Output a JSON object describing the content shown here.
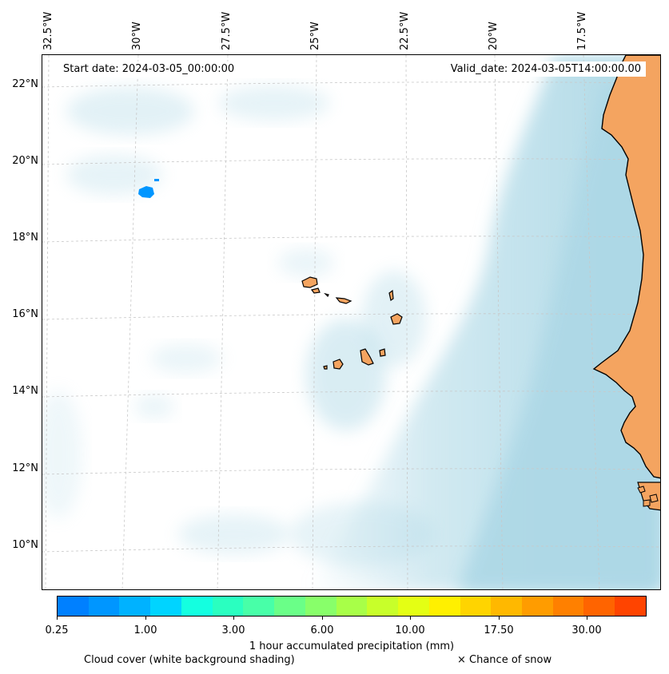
{
  "map": {
    "start_date": "Start date: 2024-03-05_00:00:00",
    "valid_date": "Valid_date: 2024-03-05T14:00:00.00",
    "lon_labels": [
      "32.5°W",
      "30°W",
      "27.5°W",
      "25°W",
      "22.5°W",
      "20°W",
      "17.5°W"
    ],
    "lat_labels": [
      "22°N",
      "20°N",
      "18°N",
      "16°N",
      "14°N",
      "12°N",
      "10°N"
    ],
    "colors": {
      "land": "#f4a460",
      "cloud": "#add8e6",
      "coast": "#000000",
      "grid": "#c8c8c8"
    }
  },
  "colorbar": {
    "label": "1 hour accumulated precipitation (mm)",
    "tick_labels": [
      "0.25",
      "1.00",
      "3.00",
      "6.00",
      "10.00",
      "17.50",
      "30.00"
    ],
    "colors": [
      "#0080ff",
      "#0096ff",
      "#00b2ff",
      "#00d4ff",
      "#14ffe0",
      "#2affc0",
      "#48ffa8",
      "#6aff88",
      "#88ff6a",
      "#a8ff48",
      "#c8ff2a",
      "#e4ff14",
      "#fff000",
      "#ffd400",
      "#ffb800",
      "#ff9c00",
      "#ff8000",
      "#ff6400",
      "#ff4400"
    ]
  },
  "legend": {
    "cloud_note": "Cloud cover (white background shading)",
    "snow_note": "× Chance of snow"
  }
}
